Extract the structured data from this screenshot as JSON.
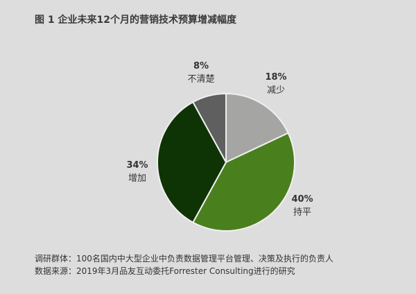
{
  "title": "图 1  企业未来12个月的营销技术预算增减幅度",
  "chart_data": {
    "type": "pie",
    "title": "图 1  企业未来12个月的营销技术预算增减幅度",
    "start": "top",
    "direction": "clockwise",
    "slices": [
      {
        "label": "减少",
        "value": 18,
        "value_label": "18%",
        "color": "#a5a5a4"
      },
      {
        "label": "持平",
        "value": 40,
        "value_label": "40%",
        "color": "#4a7f1e"
      },
      {
        "label": "增加",
        "value": 34,
        "value_label": "34%",
        "color": "#0e3305"
      },
      {
        "label": "不清楚",
        "value": 8,
        "value_label": "8%",
        "color": "#5f5f5f"
      }
    ]
  },
  "footer": {
    "line1": "调研群体：100名国内中大型企业中负责数据管理平台管理、决策及执行的负责人",
    "line2": "数据来源：2019年3月品友互动委托Forrester Consulting进行的研究"
  }
}
